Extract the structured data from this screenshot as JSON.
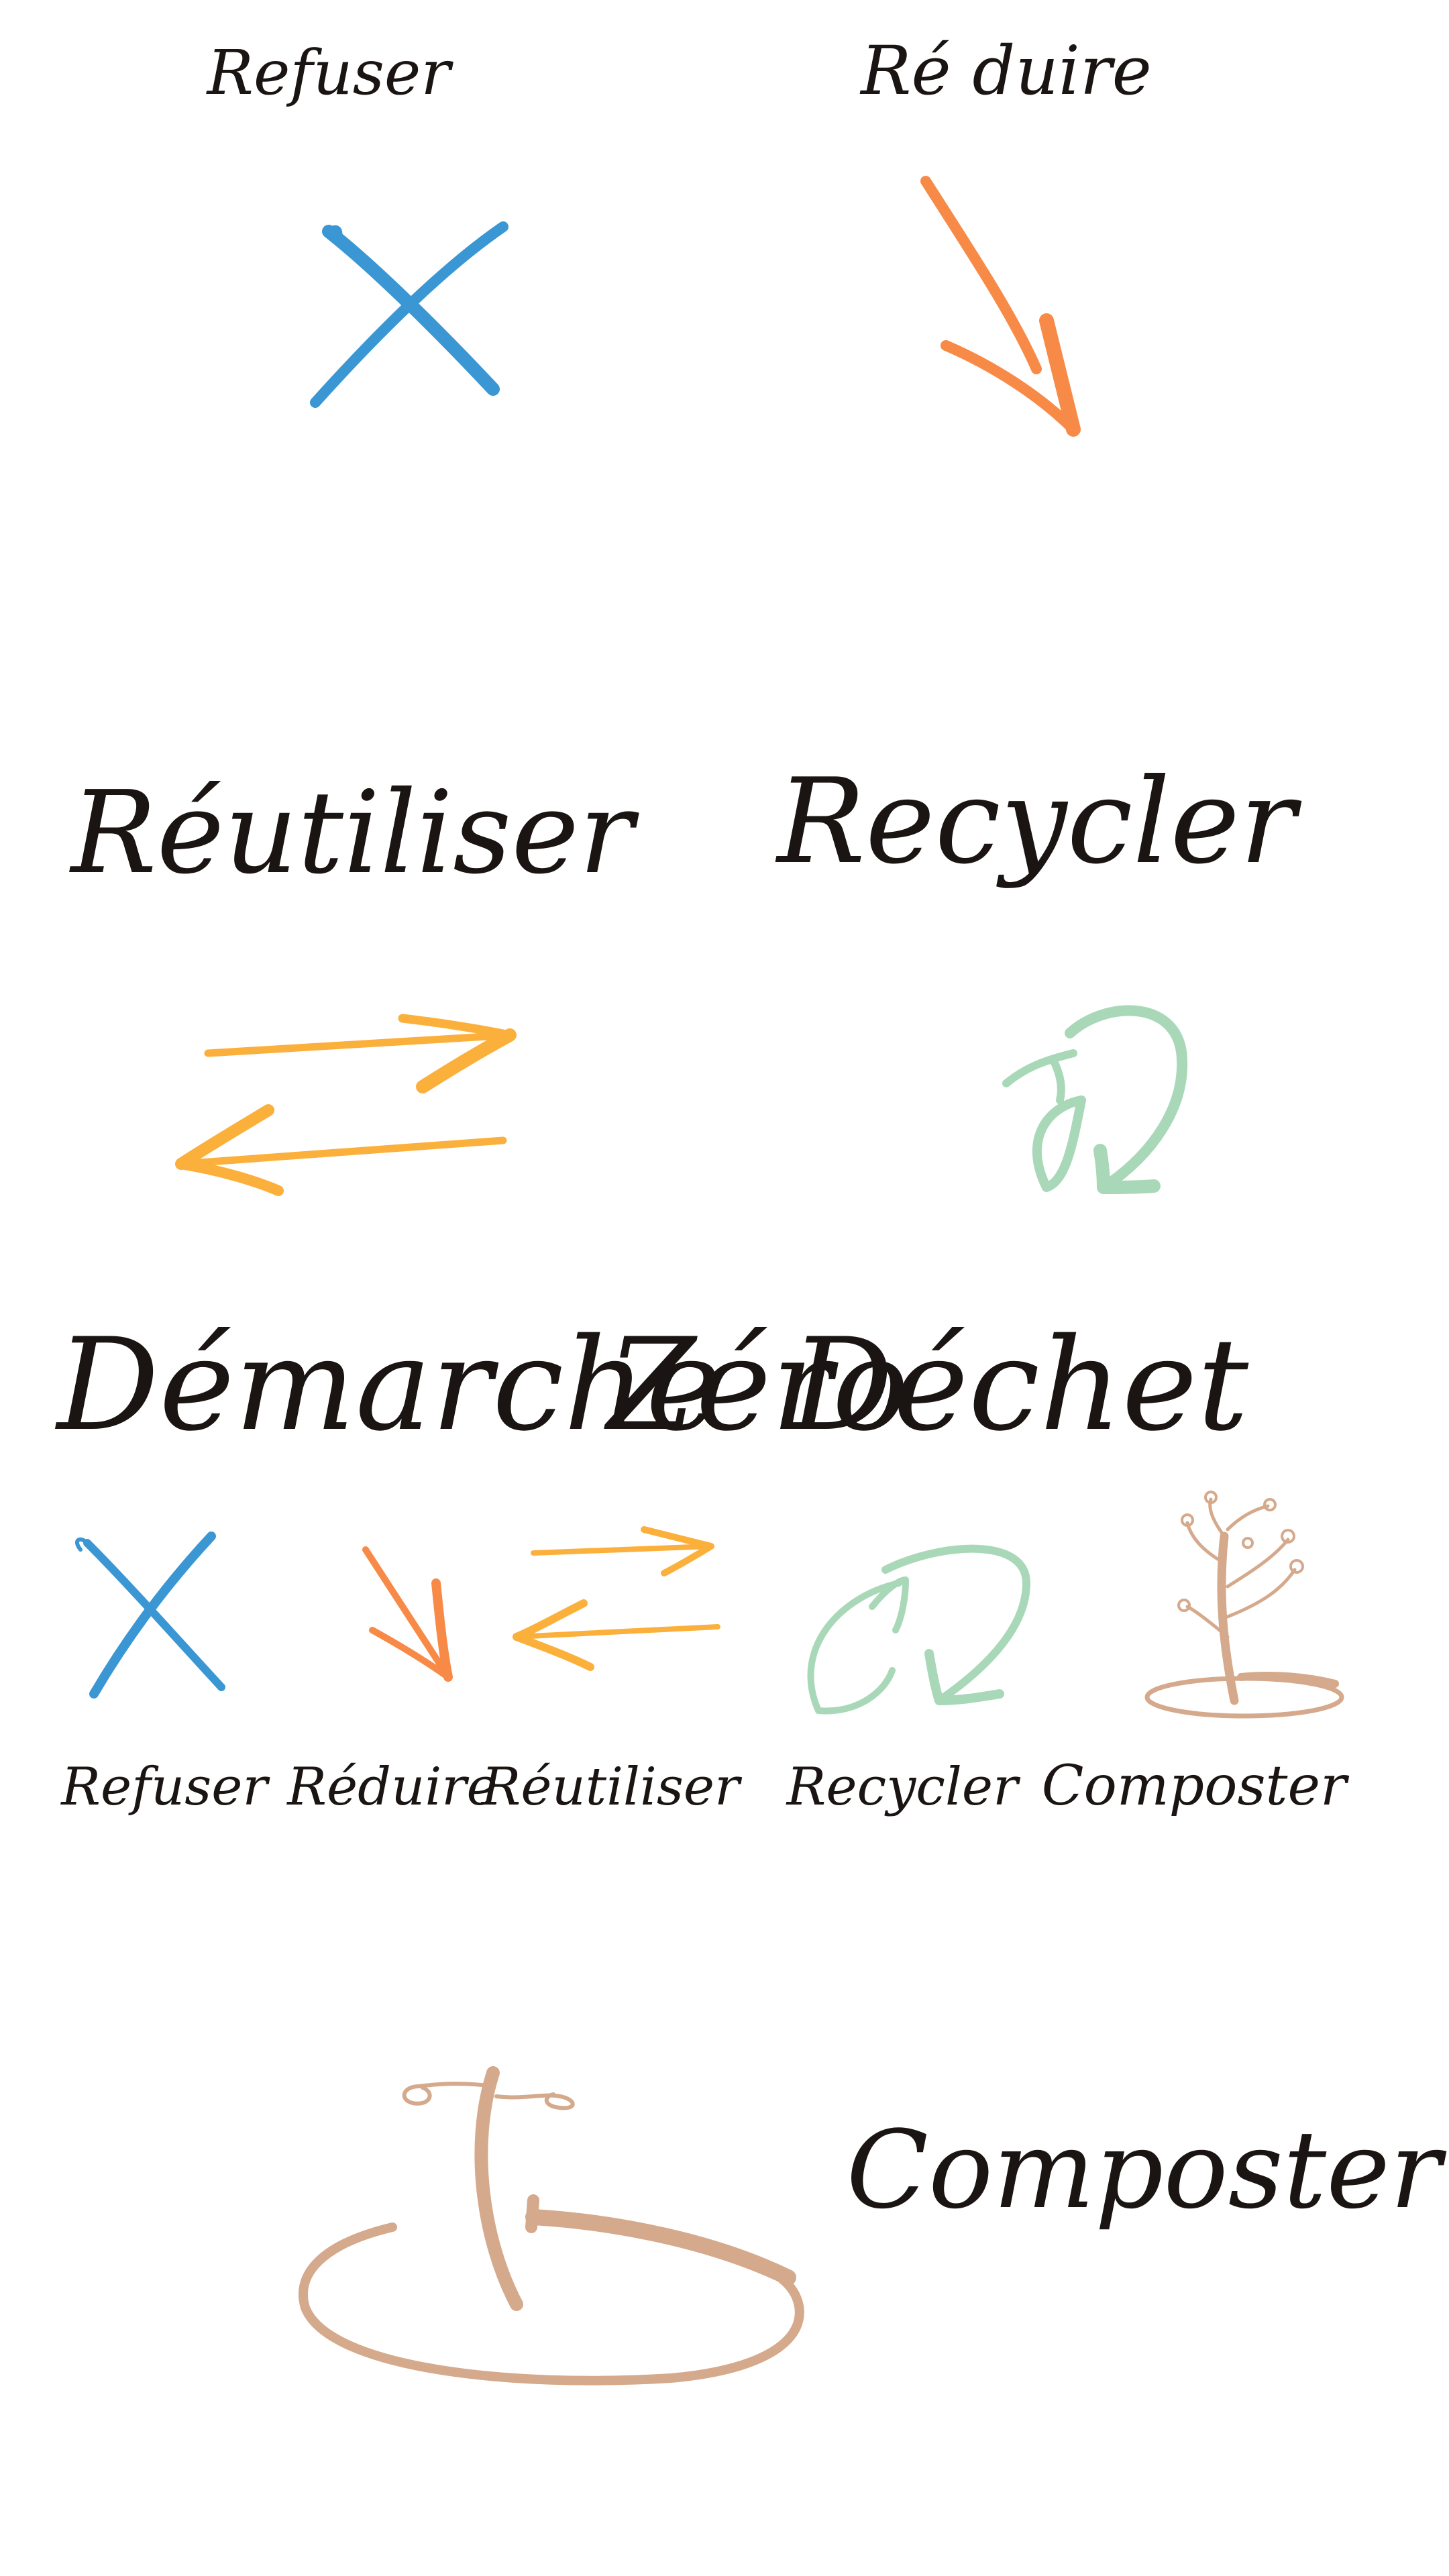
{
  "colors": {
    "ink": "#1a1512",
    "refuser": "#3a97d4",
    "reduire": "#f88a48",
    "reutiliser": "#fbb03b",
    "recycler": "#a9d8b8",
    "composter": "#d5a98b",
    "background": "#ffffff"
  },
  "words": {
    "refuser": "Refuser",
    "reduire_top": "Ré duire",
    "reduire": "Réduire",
    "reutiliser": "Réutiliser",
    "recycler": "Recycler",
    "composter": "Composter",
    "title_demarche": "Démarche",
    "title_zero": "Zéro",
    "title_dechet": "Déchet"
  },
  "icons": [
    "cross-icon",
    "down-arrow-icon",
    "exchange-arrows-icon",
    "recycle-loop-icon",
    "compost-plant-icon",
    "compost-tree-icon"
  ]
}
